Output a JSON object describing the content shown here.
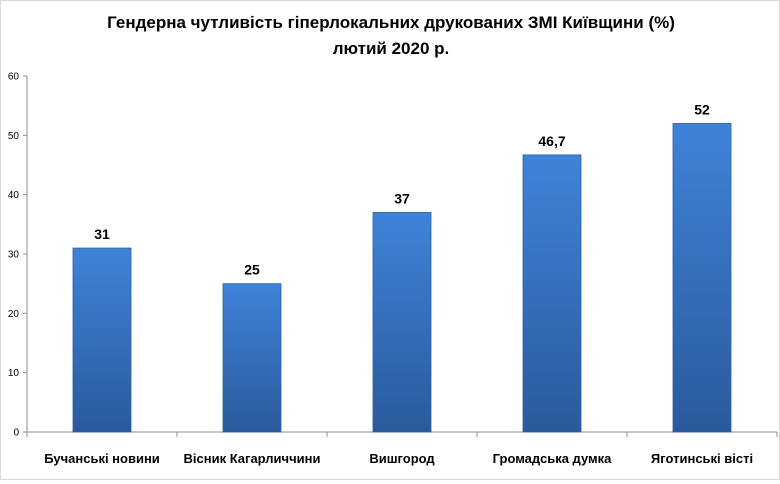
{
  "chart_data": {
    "type": "bar",
    "title": "Гендерна чутливість гіперлокальних друкованих ЗМІ Київщини (%)",
    "subtitle": "лютий 2020 р.",
    "categories": [
      "Бучанські новини",
      "Вісник Кагарличчини",
      "Вишгород",
      "Громадська думка",
      "Яготинські вісті"
    ],
    "values": [
      31,
      25,
      37,
      46.7,
      52
    ],
    "data_labels": [
      "31",
      "25",
      "37",
      "46,7",
      "52"
    ],
    "ylim": [
      0,
      60
    ],
    "yticks": [
      0,
      10,
      20,
      30,
      40,
      50,
      60
    ],
    "xlabel": "",
    "ylabel": "",
    "legend": "none",
    "grid": false,
    "colors": {
      "bar_top": "#3F83D9",
      "bar_bottom": "#2A5A9C",
      "bar_edge": "#2C5F9E",
      "axis": "#8C8C8C",
      "text": "#000000"
    }
  }
}
